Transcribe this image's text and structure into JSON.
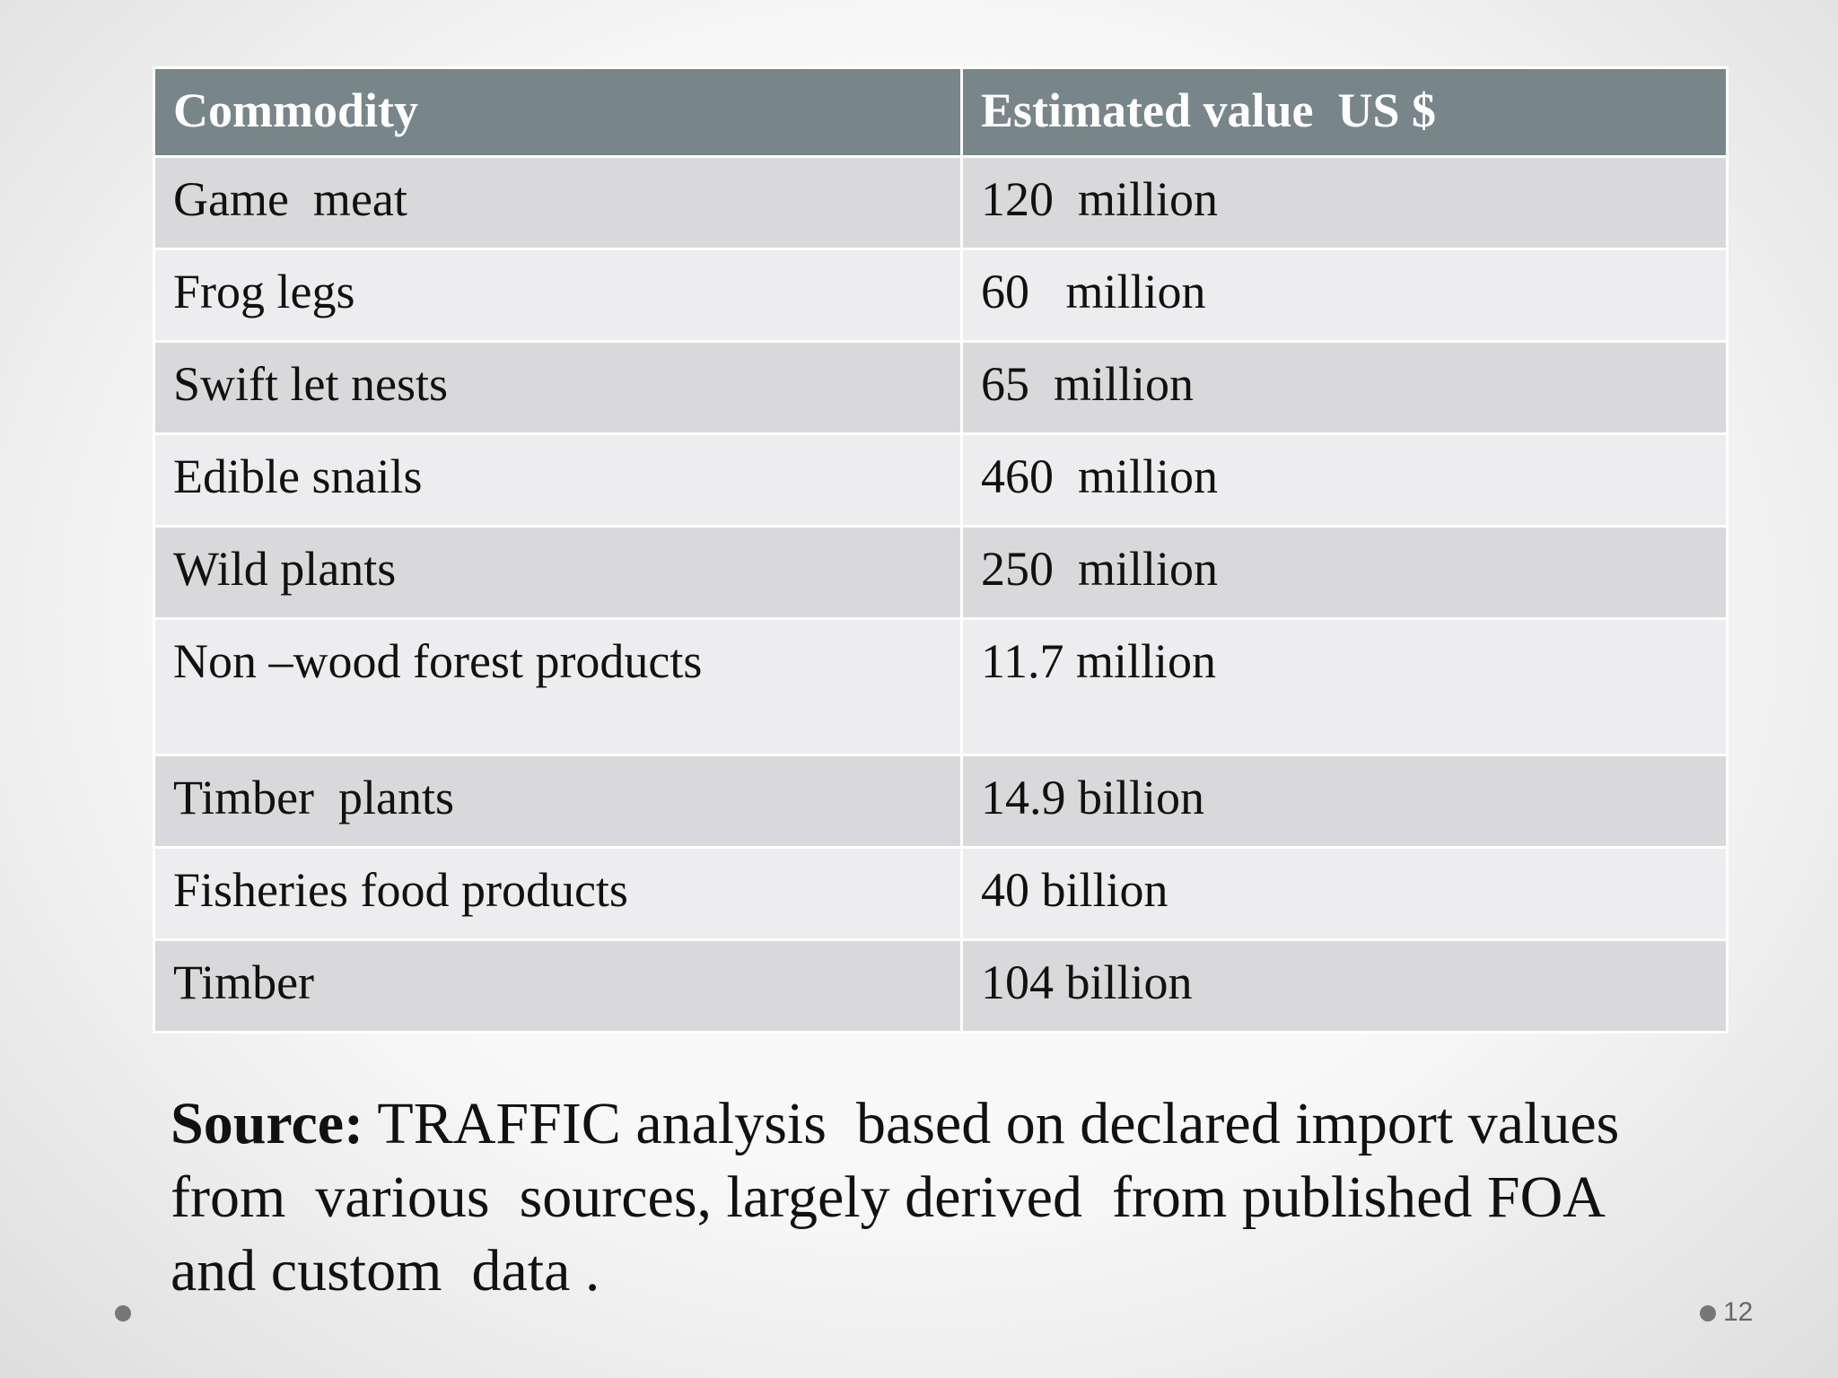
{
  "table": {
    "header": [
      "Commodity",
      "Estimated value  US $"
    ],
    "rows": [
      [
        "Game  meat",
        "120  million"
      ],
      [
        "Frog legs",
        "60   million"
      ],
      [
        "Swift let nests",
        "65  million"
      ],
      [
        "Edible snails",
        "460  million"
      ],
      [
        "Wild plants",
        "250  million"
      ],
      [
        "Non –wood forest products",
        "11.7 million"
      ],
      [
        "Timber  plants",
        "14.9 billion"
      ],
      [
        "Fisheries food products",
        "40 billion"
      ],
      [
        "Timber",
        "104 billion"
      ]
    ]
  },
  "source": {
    "label": "Source:",
    "text": " TRAFFIC analysis  based on declared import values from  various  sources, largely derived  from published FOA  and custom  data ."
  },
  "page_number": "12"
}
